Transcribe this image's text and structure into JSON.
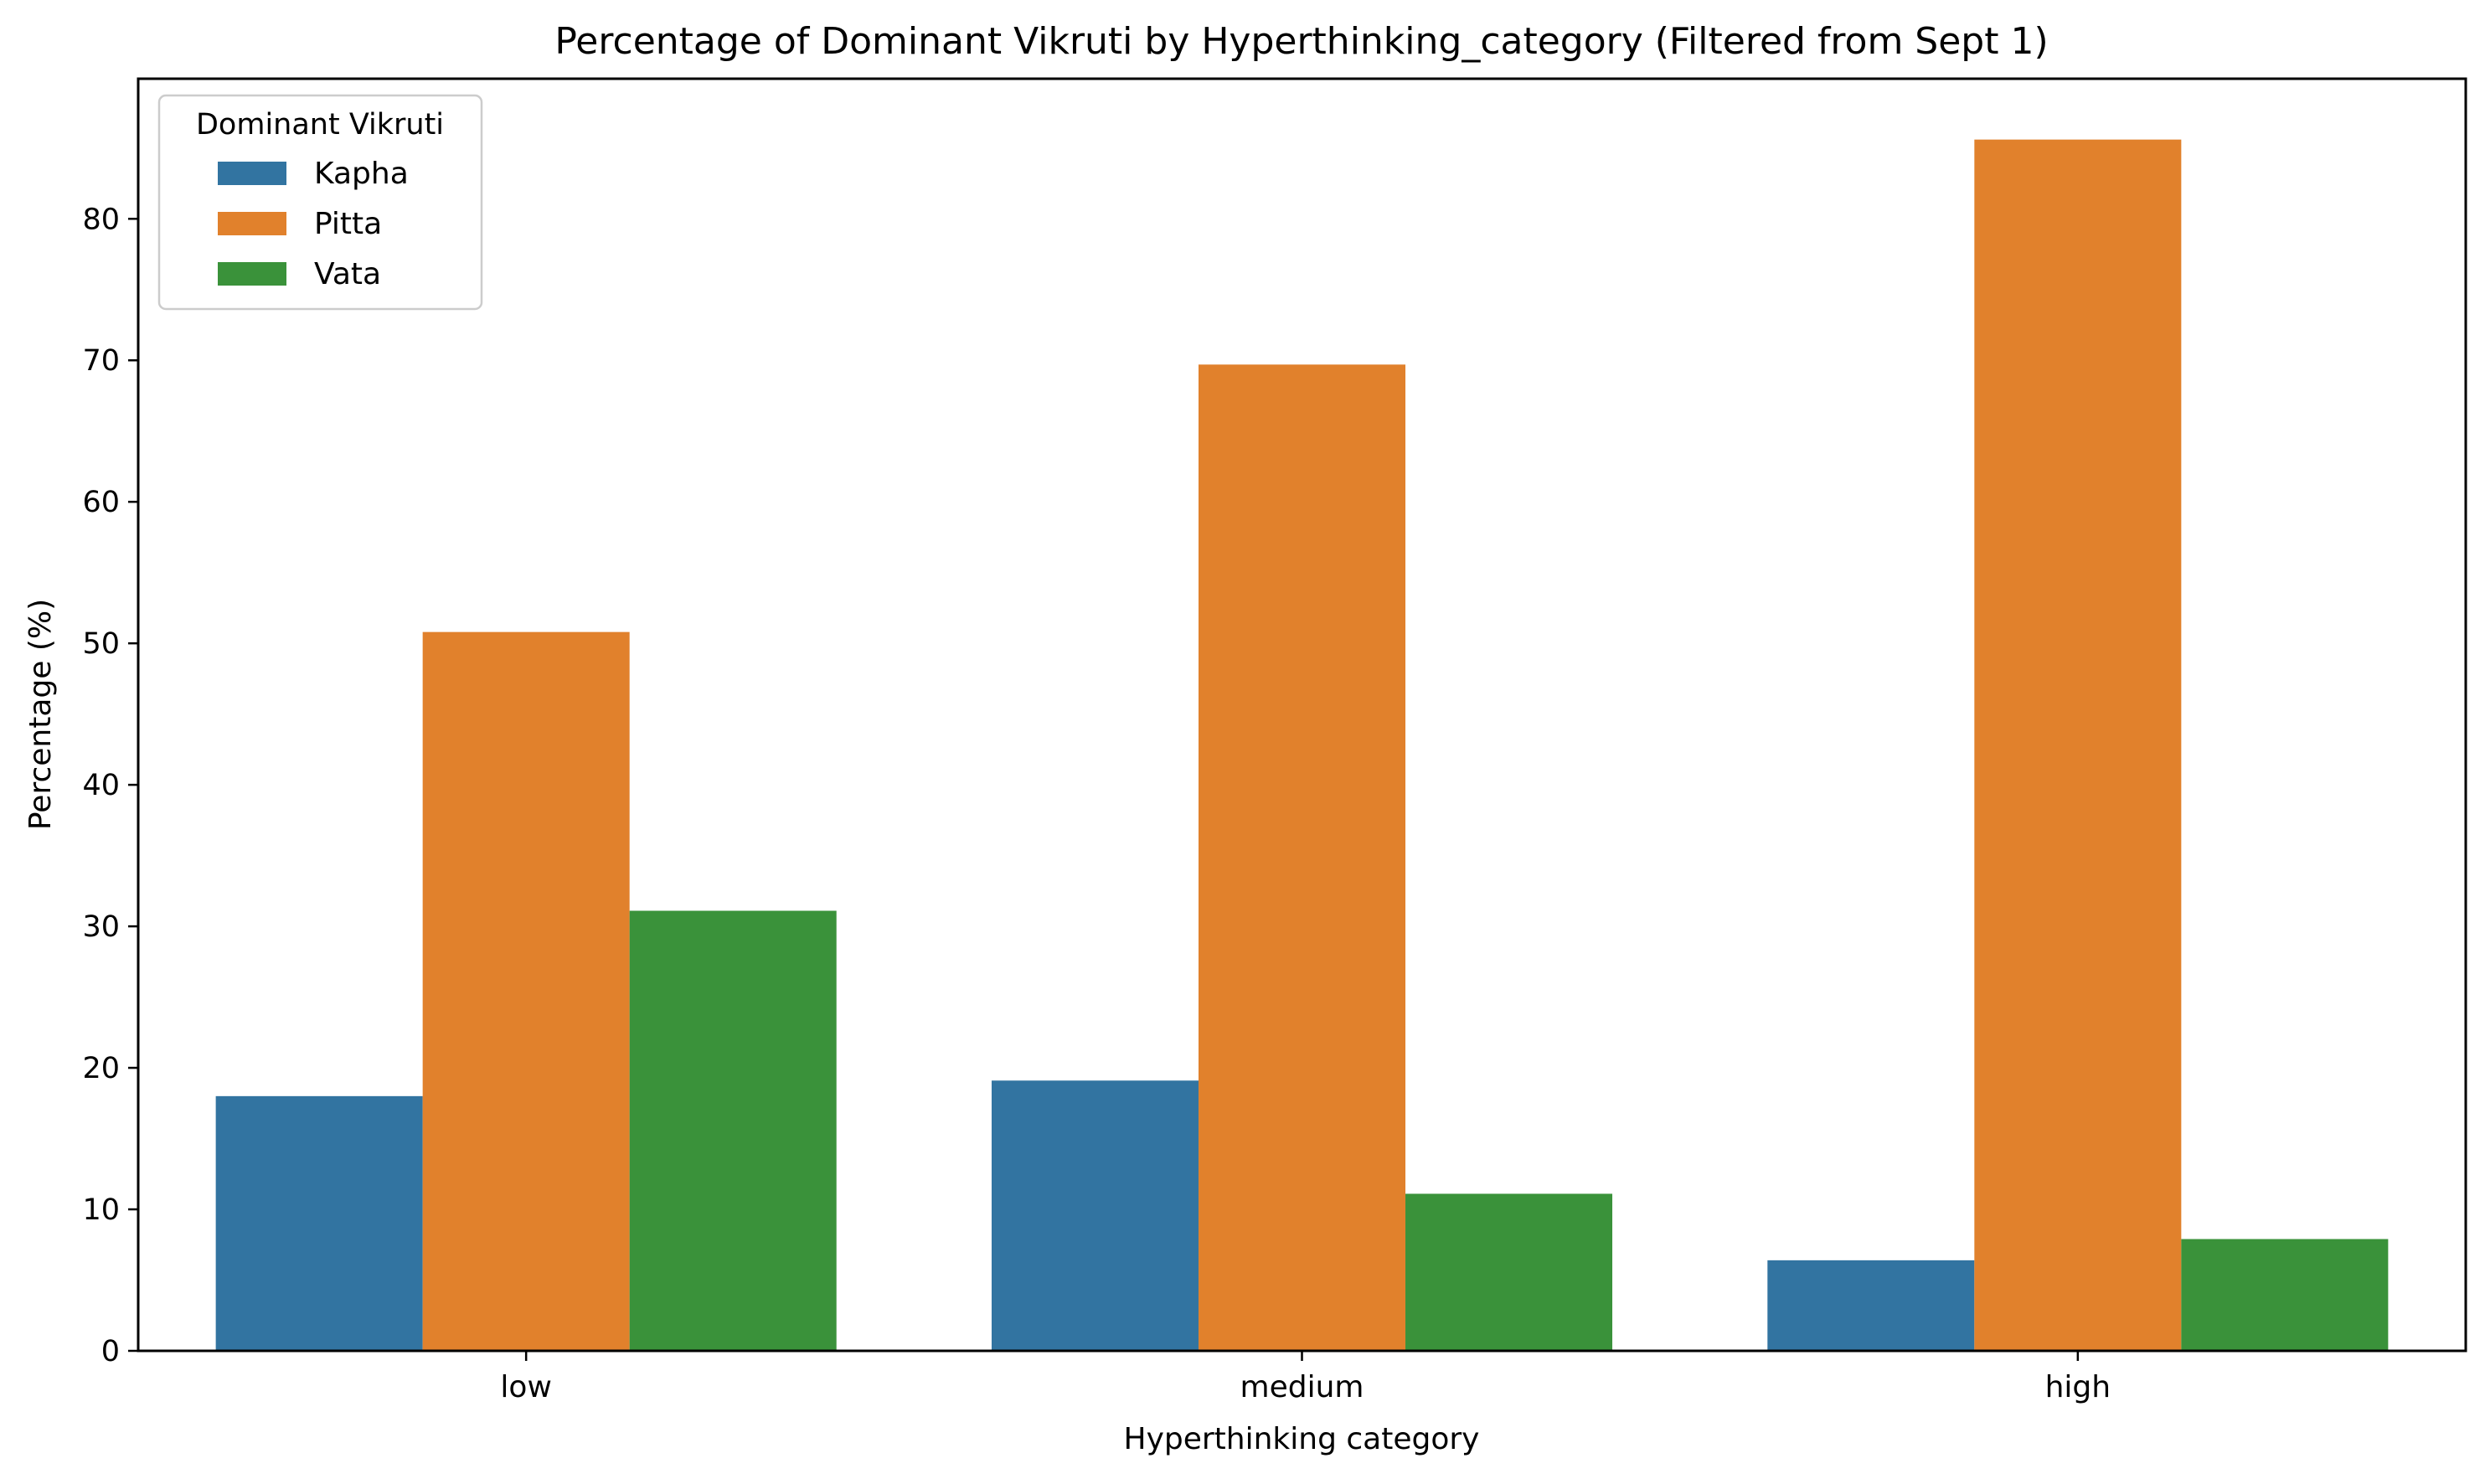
{
  "chart_data": {
    "type": "bar",
    "title": "Percentage of Dominant Vikruti by Hyperthinking_category (Filtered from Sept 1)",
    "xlabel": "Hyperthinking category",
    "ylabel": "Percentage (%)",
    "categories": [
      "low",
      "medium",
      "high"
    ],
    "series": [
      {
        "name": "Kapha",
        "color": "#3274a1",
        "values": [
          18.0,
          19.1,
          6.4
        ]
      },
      {
        "name": "Pitta",
        "color": "#e1812c",
        "values": [
          50.8,
          69.7,
          85.6
        ]
      },
      {
        "name": "Vata",
        "color": "#3a923a",
        "values": [
          31.1,
          11.1,
          7.9
        ]
      }
    ],
    "ylim": [
      0,
      89.9
    ],
    "yticks": [
      0,
      10,
      20,
      30,
      40,
      50,
      60,
      70,
      80
    ],
    "legend": {
      "title": "Dominant Vikruti",
      "position": "top-left"
    },
    "grid": false
  }
}
